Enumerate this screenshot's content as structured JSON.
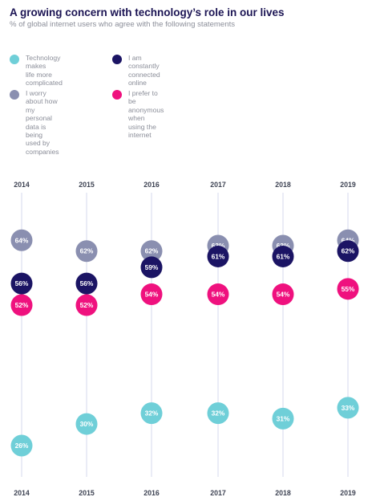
{
  "header": {
    "title": "A growing concern with technology’s role in our lives",
    "subtitle": "% of global internet users who agree with the following statements"
  },
  "chart_data": {
    "type": "scatter",
    "title": "A growing concern with technology’s role in our lives",
    "subtitle": "% of global internet users who agree with the following statements",
    "x": [
      "2014",
      "2015",
      "2016",
      "2017",
      "2018",
      "2019"
    ],
    "value_suffix": "%",
    "grid": false,
    "legend_position": "top-left",
    "series": [
      {
        "name": "Technology makes life more complicated",
        "color": "#6fcfd8",
        "values": [
          26,
          30,
          32,
          32,
          31,
          33
        ]
      },
      {
        "name": "I worry about how my personal data is being used by companies",
        "color": "#8a8fb0",
        "values": [
          64,
          62,
          62,
          63,
          63,
          64
        ]
      },
      {
        "name": "I am constantly connected online",
        "color": "#1b1464",
        "values": [
          56,
          56,
          59,
          61,
          61,
          62
        ]
      },
      {
        "name": "I prefer to be anonymous when using the internet",
        "color": "#ef117e",
        "values": [
          52,
          52,
          54,
          54,
          54,
          55
        ]
      }
    ]
  },
  "legend": [
    {
      "lines": [
        "Technology makes",
        "life more complicated"
      ],
      "color": "#6fcfd8"
    },
    {
      "lines": [
        "I am constantly",
        "connected online"
      ],
      "color": "#1b1464"
    },
    {
      "lines": [
        "I worry about how my",
        "personal data is being",
        "used by companies"
      ],
      "color": "#8a8fb0"
    },
    {
      "lines": [
        "I prefer to be",
        "anonymous when",
        "using the internet"
      ],
      "color": "#ef117e"
    }
  ]
}
